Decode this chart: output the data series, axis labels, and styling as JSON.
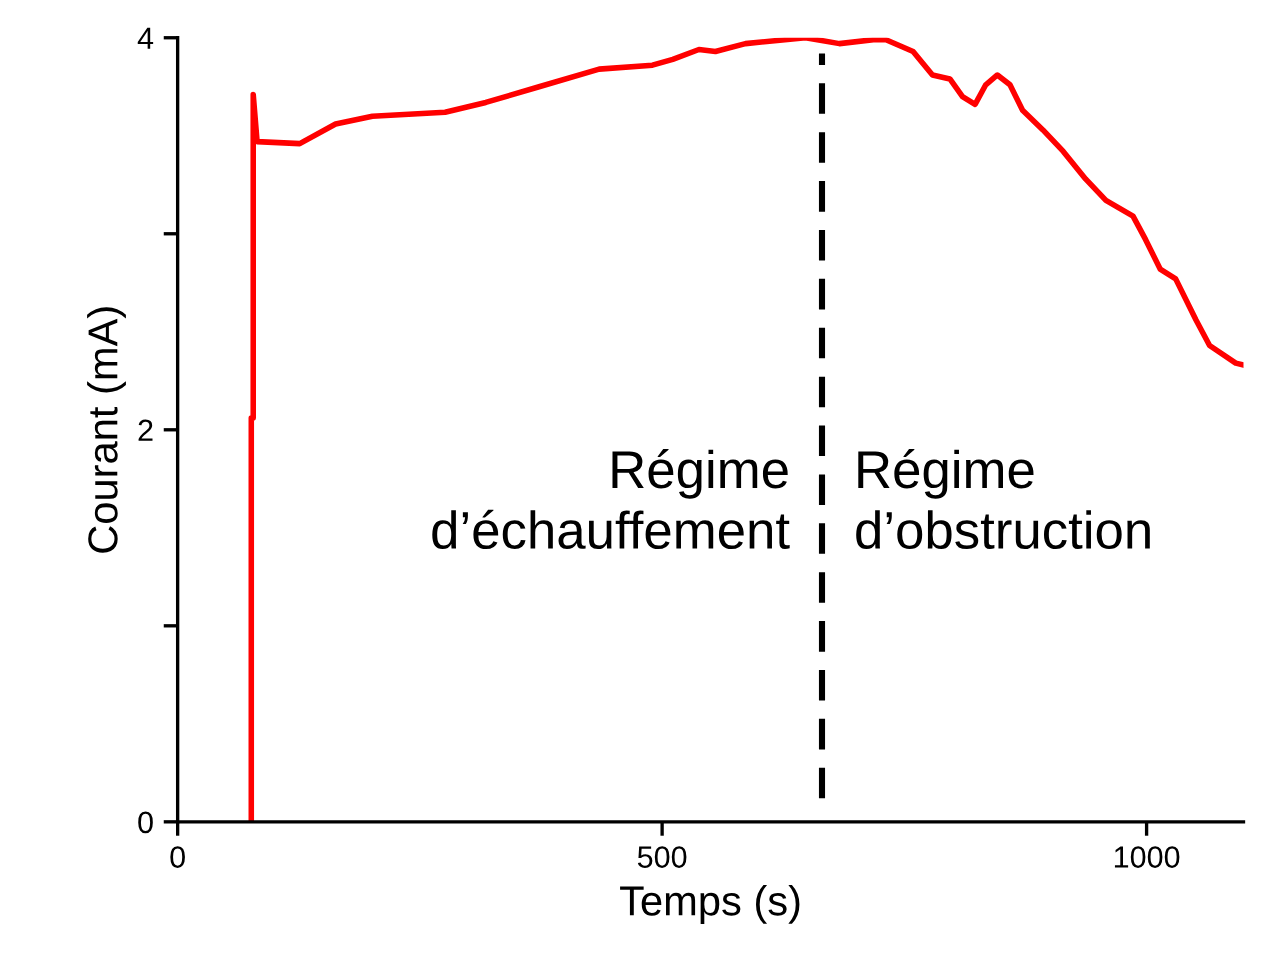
{
  "chart_data": {
    "type": "line",
    "xlabel": "Temps (s)",
    "ylabel": "Courant (mA)",
    "x": [
      76,
      76,
      78,
      78,
      82,
      126,
      163,
      201,
      276,
      318,
      373,
      435,
      490,
      511,
      538,
      555,
      586,
      648,
      683,
      718,
      731,
      759,
      779,
      797,
      810,
      823,
      834,
      846,
      859,
      872,
      893,
      914,
      937,
      958,
      986,
      999,
      1014,
      1030,
      1051,
      1065,
      1092,
      1100
    ],
    "series": [
      {
        "color": "#ff0000",
        "values": [
          0,
          2.06,
          2.06,
          3.71,
          3.47,
          3.46,
          3.56,
          3.6,
          3.62,
          3.67,
          3.75,
          3.84,
          3.86,
          3.89,
          3.94,
          3.93,
          3.97,
          4.0,
          3.97,
          3.99,
          3.99,
          3.93,
          3.81,
          3.79,
          3.7,
          3.66,
          3.76,
          3.81,
          3.76,
          3.63,
          3.53,
          3.42,
          3.28,
          3.17,
          3.09,
          2.97,
          2.82,
          2.77,
          2.56,
          2.43,
          2.34,
          2.33
        ]
      }
    ],
    "xlim": [
      0,
      1100
    ],
    "xticks": [
      0,
      500,
      1000
    ],
    "ylim": [
      0,
      4
    ],
    "yticks": [
      0,
      {
        "value": 1,
        "label": null
      },
      2,
      {
        "value": 3,
        "label": null
      },
      4
    ],
    "grid": false,
    "legend": false,
    "marker": "none",
    "line_style": "solid",
    "ref_lines": [
      {
        "axis": "x",
        "value": 665,
        "color": "#000000",
        "line_style": "dashed"
      }
    ],
    "annotations": [
      "Régime\nd’échauffement",
      "Régime\nd’obstruction"
    ]
  }
}
